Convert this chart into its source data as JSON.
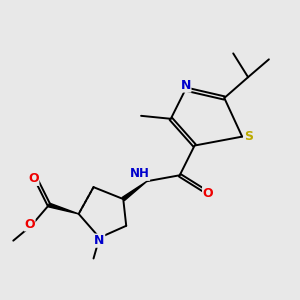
{
  "bg_color": "#e8e8e8",
  "atom_colors": {
    "N": "#0000cc",
    "O": "#ee0000",
    "S": "#bbaa00",
    "C": "#000000"
  },
  "bond_color": "#000000",
  "bond_width": 1.4,
  "font_size": 8.5
}
